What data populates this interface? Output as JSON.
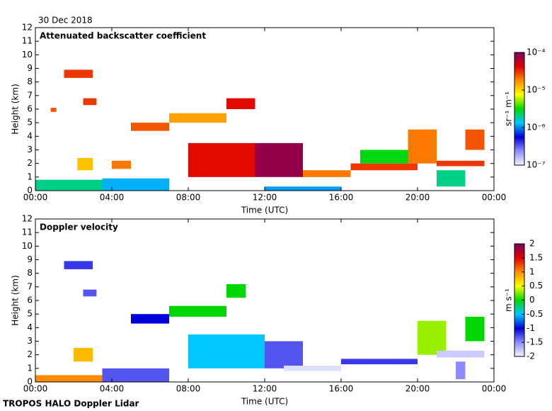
{
  "header": {
    "date": "30 Dec 2018",
    "footer": "TROPOS HALO Doppler Lidar"
  },
  "chart_data": [
    {
      "type": "heatmap",
      "title": "Attenuated backscatter coefficient",
      "xlabel": "Time (UTC)",
      "ylabel": "Height (km)",
      "xlim": [
        0,
        24
      ],
      "xticks": [
        {
          "value": 0,
          "label": "00:00"
        },
        {
          "value": 4,
          "label": "04:00"
        },
        {
          "value": 8,
          "label": "08:00"
        },
        {
          "value": 12,
          "label": "12:00"
        },
        {
          "value": 16,
          "label": "16:00"
        },
        {
          "value": 20,
          "label": "20:00"
        },
        {
          "value": 24,
          "label": "00:00"
        }
      ],
      "ylim": [
        0,
        12
      ],
      "yticks": [
        0,
        1,
        2,
        3,
        4,
        5,
        6,
        7,
        8,
        9,
        10,
        11,
        12
      ],
      "colormap": [
        "#f4f4ff",
        "#8c8cff",
        "#0000d8",
        "#00c8ff",
        "#00d800",
        "#ffff00",
        "#ff8c00",
        "#e00000",
        "#7a0060"
      ],
      "colorbar": {
        "label": "sr⁻¹ m⁻¹",
        "log": true,
        "lim": [
          1e-07,
          0.0001
        ],
        "ticks": [
          {
            "value": 1e-07,
            "label": "10⁻⁷"
          },
          {
            "value": 1e-06,
            "label": "10⁻⁶"
          },
          {
            "value": 1e-05,
            "label": "10⁻⁵"
          },
          {
            "value": 0.0001,
            "label": "10⁻⁴"
          }
        ]
      },
      "cells": [
        {
          "t": [
            0,
            3.5
          ],
          "h": [
            0,
            0.8
          ],
          "value": 2e-06
        },
        {
          "t": [
            3.5,
            7
          ],
          "h": [
            0,
            0.9
          ],
          "value": 1.2e-06
        },
        {
          "t": [
            1.5,
            3
          ],
          "h": [
            8.3,
            8.9
          ],
          "value": 3e-05
        },
        {
          "t": [
            2.5,
            3.2
          ],
          "h": [
            6.3,
            6.8
          ],
          "value": 3e-05
        },
        {
          "t": [
            0.8,
            1.1
          ],
          "h": [
            5.8,
            6.1
          ],
          "value": 2.5e-05
        },
        {
          "t": [
            2.2,
            3
          ],
          "h": [
            1.5,
            2.4
          ],
          "value": 1.2e-05
        },
        {
          "t": [
            4,
            5
          ],
          "h": [
            1.6,
            2.2
          ],
          "value": 2e-05
        },
        {
          "t": [
            5,
            7
          ],
          "h": [
            4.4,
            5
          ],
          "value": 2.5e-05
        },
        {
          "t": [
            7,
            10
          ],
          "h": [
            5,
            5.7
          ],
          "value": 1.5e-05
        },
        {
          "t": [
            10,
            11.5
          ],
          "h": [
            6,
            6.8
          ],
          "value": 4e-05
        },
        {
          "t": [
            8,
            11.5
          ],
          "h": [
            1,
            3.5
          ],
          "value": 4e-05
        },
        {
          "t": [
            11.5,
            14
          ],
          "h": [
            1,
            3.5
          ],
          "value": 8e-05
        },
        {
          "t": [
            12,
            16
          ],
          "h": [
            0,
            0.3
          ],
          "value": 1.1e-06
        },
        {
          "t": [
            14,
            16.5
          ],
          "h": [
            1,
            1.5
          ],
          "value": 2e-05
        },
        {
          "t": [
            16.5,
            20
          ],
          "h": [
            1.5,
            2
          ],
          "value": 3e-05
        },
        {
          "t": [
            17,
            19.5
          ],
          "h": [
            2,
            3
          ],
          "value": 3e-06
        },
        {
          "t": [
            19.5,
            21
          ],
          "h": [
            2,
            4.5
          ],
          "value": 2e-05
        },
        {
          "t": [
            21,
            22.5
          ],
          "h": [
            0.3,
            1.5
          ],
          "value": 2e-06
        },
        {
          "t": [
            21,
            23.5
          ],
          "h": [
            1.8,
            2.2
          ],
          "value": 3e-05
        },
        {
          "t": [
            22.5,
            23.5
          ],
          "h": [
            3,
            4.5
          ],
          "value": 2.5e-05
        }
      ]
    },
    {
      "type": "heatmap",
      "title": "Doppler velocity",
      "xlabel": "Time (UTC)",
      "ylabel": "Height (km)",
      "xlim": [
        0,
        24
      ],
      "xticks": [
        {
          "value": 0,
          "label": "00:00"
        },
        {
          "value": 4,
          "label": "04:00"
        },
        {
          "value": 8,
          "label": "08:00"
        },
        {
          "value": 12,
          "label": "12:00"
        },
        {
          "value": 16,
          "label": "16:00"
        },
        {
          "value": 20,
          "label": "20:00"
        },
        {
          "value": 24,
          "label": "00:00"
        }
      ],
      "ylim": [
        0,
        12
      ],
      "yticks": [
        0,
        1,
        2,
        3,
        4,
        5,
        6,
        7,
        8,
        9,
        10,
        11,
        12
      ],
      "colormap": [
        "#f4f4ff",
        "#8c8cff",
        "#0000d8",
        "#00c8ff",
        "#00d800",
        "#ffff00",
        "#ff8c00",
        "#e00000",
        "#7a0060"
      ],
      "colorbar": {
        "label": "m s⁻¹",
        "log": false,
        "lim": [
          -2,
          2
        ],
        "ticks": [
          -2,
          -1.5,
          -1,
          -0.5,
          0,
          0.5,
          1,
          1.5,
          2
        ]
      },
      "cells": [
        {
          "t": [
            0,
            3.5
          ],
          "h": [
            0,
            0.5
          ],
          "value": 1
        },
        {
          "t": [
            3.5,
            7
          ],
          "h": [
            0,
            1
          ],
          "value": -1.3
        },
        {
          "t": [
            1.5,
            3
          ],
          "h": [
            8.3,
            8.9
          ],
          "value": -1.2
        },
        {
          "t": [
            2.5,
            3.2
          ],
          "h": [
            6.3,
            6.8
          ],
          "value": -1.3
        },
        {
          "t": [
            2,
            3
          ],
          "h": [
            1.5,
            2.5
          ],
          "value": 0.8
        },
        {
          "t": [
            5,
            7
          ],
          "h": [
            4.3,
            5
          ],
          "value": -1
        },
        {
          "t": [
            7,
            10
          ],
          "h": [
            4.8,
            5.6
          ],
          "value": 0
        },
        {
          "t": [
            10,
            11
          ],
          "h": [
            6.2,
            7.2
          ],
          "value": 0
        },
        {
          "t": [
            8,
            12
          ],
          "h": [
            1,
            3.5
          ],
          "value": -0.5
        },
        {
          "t": [
            12,
            14
          ],
          "h": [
            1,
            3
          ],
          "value": -1.3
        },
        {
          "t": [
            13,
            16
          ],
          "h": [
            0.8,
            1.2
          ],
          "value": -1.9
        },
        {
          "t": [
            16,
            20
          ],
          "h": [
            1.3,
            1.7
          ],
          "value": -1.2
        },
        {
          "t": [
            20,
            21.5
          ],
          "h": [
            2,
            4.5
          ],
          "value": 0.3
        },
        {
          "t": [
            21,
            23.5
          ],
          "h": [
            1.8,
            2.3
          ],
          "value": -1.8
        },
        {
          "t": [
            22,
            22.5
          ],
          "h": [
            0.2,
            1.5
          ],
          "value": -1.5
        },
        {
          "t": [
            22.5,
            23.5
          ],
          "h": [
            3,
            4.8
          ],
          "value": 0
        }
      ]
    }
  ]
}
